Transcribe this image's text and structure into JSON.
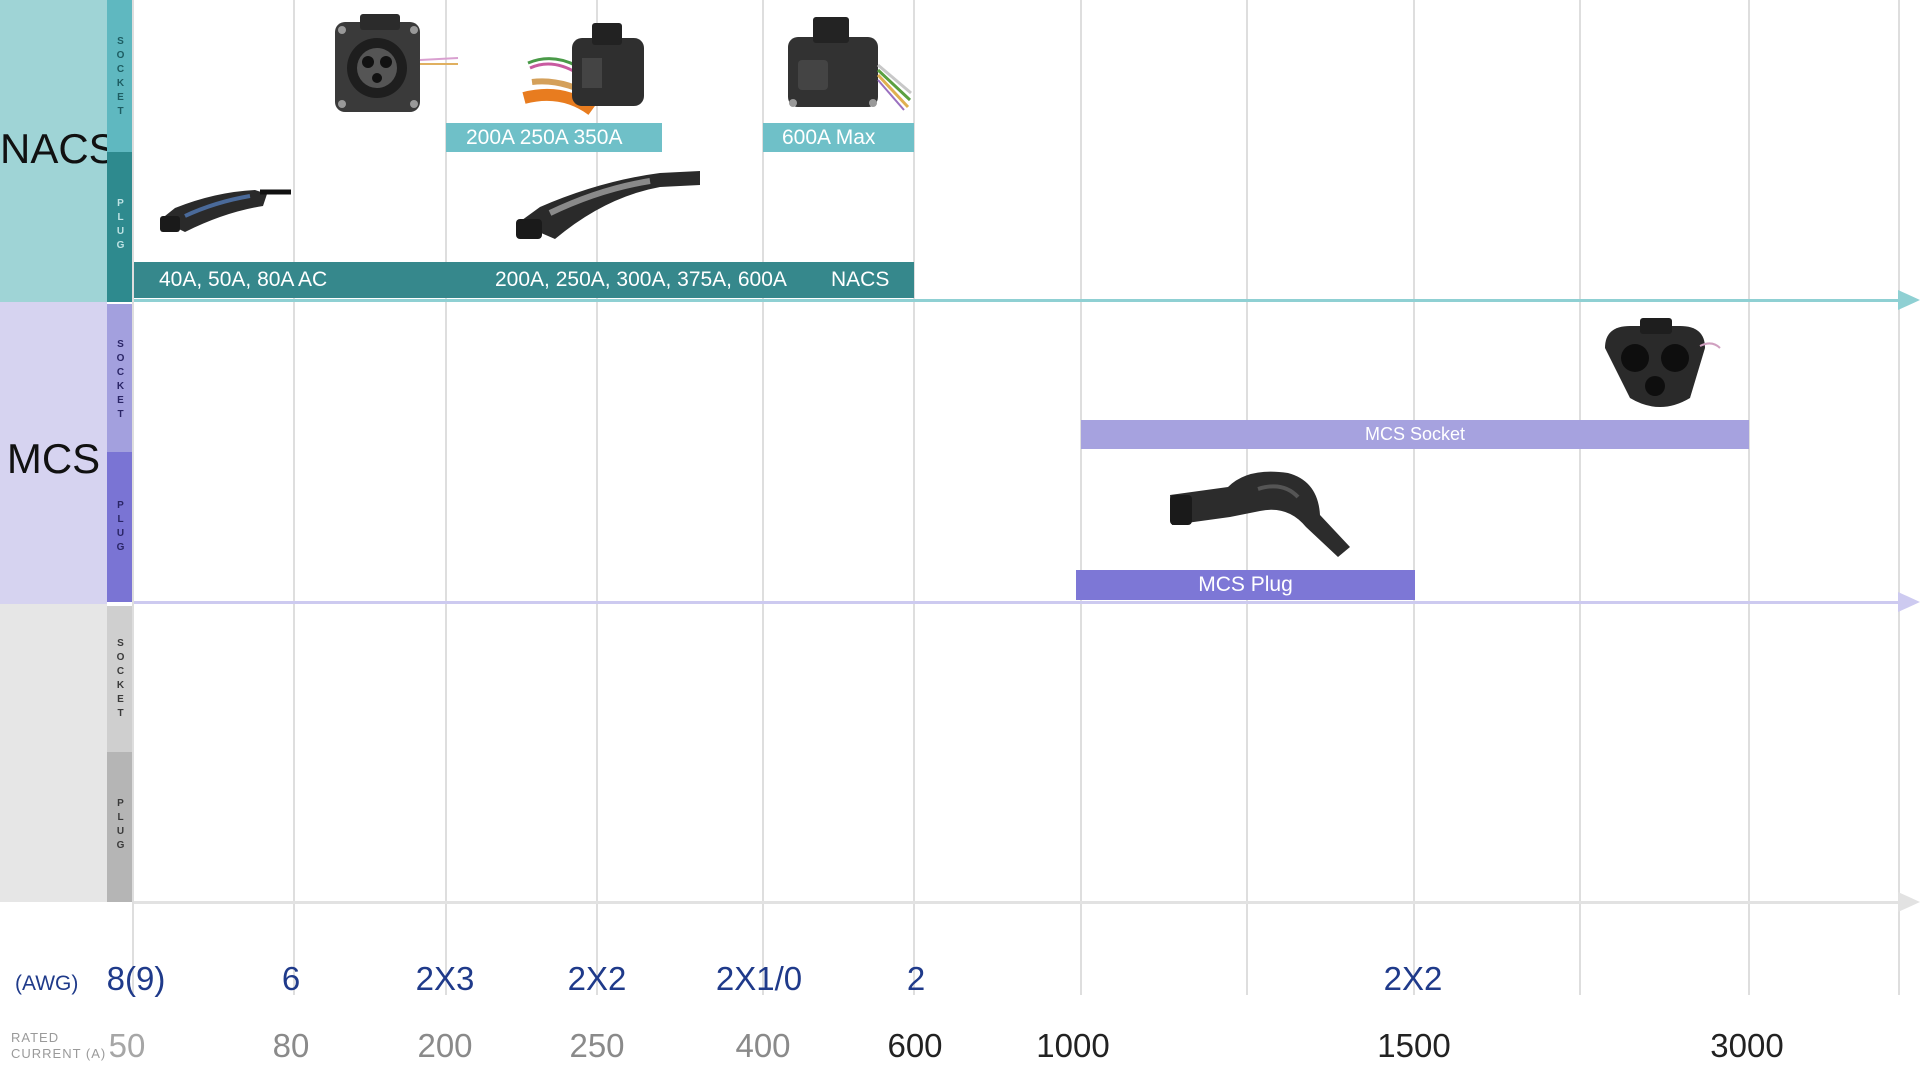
{
  "rows": {
    "nacs": {
      "label": "NACS",
      "socket_letters": [
        "S",
        "O",
        "C",
        "K",
        "E",
        "T"
      ],
      "plug_letters": [
        "P",
        "L",
        "U",
        "G"
      ]
    },
    "mcs": {
      "label": "MCS",
      "socket_letters": [
        "S",
        "O",
        "C",
        "K",
        "E",
        "T"
      ],
      "plug_letters": [
        "P",
        "L",
        "U",
        "G"
      ]
    },
    "third": {
      "socket_letters": [
        "S",
        "O",
        "C",
        "K",
        "E",
        "T"
      ],
      "plug_letters": [
        "P",
        "L",
        "U",
        "G"
      ]
    }
  },
  "bars": {
    "nacs_socket_1": "200A 250A 350A",
    "nacs_socket_2": "600A Max",
    "nacs_plug_1": "40A, 50A, 80A AC",
    "nacs_plug_2": "200A, 250A, 300A, 375A, 600A",
    "nacs_plug_3": "NACS",
    "mcs_socket": "MCS Socket",
    "mcs_plug": "MCS Plug"
  },
  "axis": {
    "awg_label": "(AWG)",
    "current_label_1": "RATED",
    "current_label_2": "CURRENT (A)",
    "awg_ticks": [
      "8(9)",
      "6",
      "2X3",
      "2X2",
      "2X1/0",
      "2",
      "2X2"
    ],
    "current_ticks": [
      "50",
      "80",
      "200",
      "250",
      "400",
      "600",
      "1000",
      "1500",
      "3000"
    ]
  },
  "colors": {
    "nacs_band": "#9fd4d6",
    "nacs_socket_tab": "#5fb8c0",
    "nacs_plug_tab": "#2e8a8e",
    "nacs_socket_bar": "#6fc0c8",
    "nacs_plug_bar": "#36888c",
    "mcs_band": "#d6d3f0",
    "mcs_socket_tab": "#a3a0de",
    "mcs_plug_tab": "#7a74d4",
    "mcs_socket_bar": "#a6a2df",
    "mcs_plug_bar": "#7d77d6",
    "gray_band": "#e6e6e6",
    "gray_socket_tab": "#cfcfcf",
    "gray_plug_tab": "#b5b5b5",
    "awg_text": "#1f3a8a"
  },
  "icons": [
    "nacs-ac-plug-photo",
    "nacs-socket-photo",
    "nacs-dc-socket-photo",
    "nacs-600a-socket-photo",
    "nacs-dc-plug-photo",
    "mcs-socket-photo",
    "mcs-plug-photo"
  ]
}
